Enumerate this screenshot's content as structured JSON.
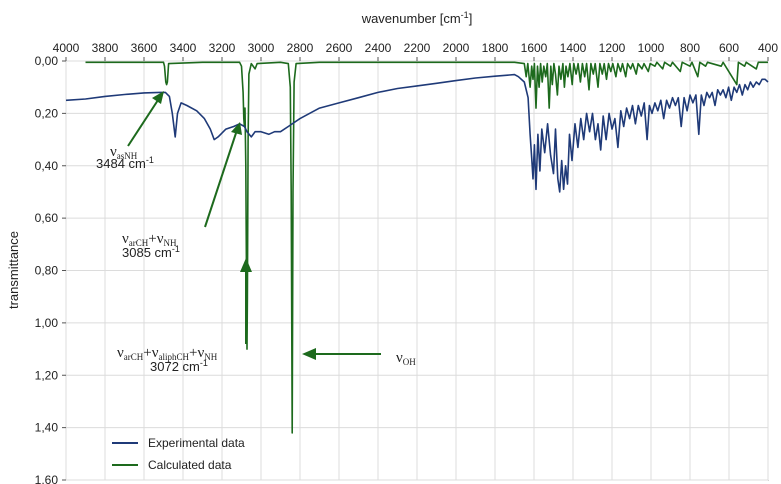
{
  "chart_data": {
    "type": "line",
    "xlabel": "wavenumber [cm",
    "xlabel_sup": "-1",
    "xlabel_close": "]",
    "ylabel": "transmittance",
    "xlim": [
      4000,
      400
    ],
    "ylim": [
      0,
      1.6
    ],
    "x_ticks": [
      4000,
      3800,
      3600,
      3400,
      3200,
      3000,
      2800,
      2600,
      2400,
      2200,
      2000,
      1800,
      1600,
      1400,
      1200,
      1000,
      800,
      600,
      400
    ],
    "x_tick_labels": [
      "4000",
      "3800",
      "3600",
      "3400",
      "3200",
      "3000",
      "2800",
      "2600",
      "2400",
      "2200",
      "2000",
      "1800",
      "1600",
      "1400",
      "1200",
      "1000",
      "800",
      "600",
      "400"
    ],
    "y_ticks": [
      0,
      0.2,
      0.4,
      0.6,
      0.8,
      1.0,
      1.2,
      1.4,
      1.6
    ],
    "y_tick_labels": [
      "0,00",
      "0,20",
      "0,40",
      "0,60",
      "0,80",
      "1,00",
      "1,20",
      "1,40",
      "1,60"
    ],
    "grid": true,
    "legend_position": "bottom-left",
    "series": [
      {
        "name": "Experimental data",
        "color": "#1f3a78",
        "points": [
          [
            4000,
            0.15
          ],
          [
            3900,
            0.145
          ],
          [
            3800,
            0.135
          ],
          [
            3700,
            0.128
          ],
          [
            3600,
            0.122
          ],
          [
            3520,
            0.12
          ],
          [
            3490,
            0.12
          ],
          [
            3470,
            0.135
          ],
          [
            3455,
            0.2
          ],
          [
            3440,
            0.29
          ],
          [
            3428,
            0.2
          ],
          [
            3410,
            0.16
          ],
          [
            3380,
            0.17
          ],
          [
            3330,
            0.19
          ],
          [
            3290,
            0.22
          ],
          [
            3260,
            0.26
          ],
          [
            3240,
            0.3
          ],
          [
            3220,
            0.29
          ],
          [
            3180,
            0.26
          ],
          [
            3140,
            0.25
          ],
          [
            3110,
            0.24
          ],
          [
            3085,
            0.25
          ],
          [
            3072,
            0.27
          ],
          [
            3050,
            0.29
          ],
          [
            3030,
            0.27
          ],
          [
            3000,
            0.27
          ],
          [
            2960,
            0.28
          ],
          [
            2930,
            0.27
          ],
          [
            2900,
            0.27
          ],
          [
            2860,
            0.25
          ],
          [
            2800,
            0.22
          ],
          [
            2700,
            0.18
          ],
          [
            2600,
            0.16
          ],
          [
            2500,
            0.14
          ],
          [
            2400,
            0.12
          ],
          [
            2300,
            0.105
          ],
          [
            2200,
            0.095
          ],
          [
            2100,
            0.085
          ],
          [
            2000,
            0.075
          ],
          [
            1900,
            0.065
          ],
          [
            1800,
            0.058
          ],
          [
            1700,
            0.052
          ],
          [
            1680,
            0.06
          ],
          [
            1650,
            0.08
          ],
          [
            1630,
            0.14
          ],
          [
            1620,
            0.28
          ],
          [
            1612,
            0.37
          ],
          [
            1605,
            0.45
          ],
          [
            1598,
            0.32
          ],
          [
            1590,
            0.49
          ],
          [
            1580,
            0.28
          ],
          [
            1570,
            0.42
          ],
          [
            1560,
            0.26
          ],
          [
            1545,
            0.35
          ],
          [
            1530,
            0.24
          ],
          [
            1515,
            0.36
          ],
          [
            1500,
            0.43
          ],
          [
            1490,
            0.26
          ],
          [
            1478,
            0.45
          ],
          [
            1468,
            0.5
          ],
          [
            1458,
            0.38
          ],
          [
            1448,
            0.49
          ],
          [
            1438,
            0.4
          ],
          [
            1428,
            0.47
          ],
          [
            1418,
            0.28
          ],
          [
            1405,
            0.38
          ],
          [
            1390,
            0.24
          ],
          [
            1375,
            0.33
          ],
          [
            1360,
            0.22
          ],
          [
            1345,
            0.3
          ],
          [
            1330,
            0.2
          ],
          [
            1315,
            0.27
          ],
          [
            1300,
            0.2
          ],
          [
            1285,
            0.3
          ],
          [
            1272,
            0.24
          ],
          [
            1258,
            0.34
          ],
          [
            1245,
            0.21
          ],
          [
            1230,
            0.3
          ],
          [
            1215,
            0.2
          ],
          [
            1200,
            0.26
          ],
          [
            1185,
            0.22
          ],
          [
            1170,
            0.33
          ],
          [
            1155,
            0.19
          ],
          [
            1140,
            0.25
          ],
          [
            1125,
            0.18
          ],
          [
            1110,
            0.22
          ],
          [
            1095,
            0.17
          ],
          [
            1080,
            0.24
          ],
          [
            1065,
            0.17
          ],
          [
            1050,
            0.21
          ],
          [
            1035,
            0.16
          ],
          [
            1020,
            0.3
          ],
          [
            1008,
            0.17
          ],
          [
            995,
            0.2
          ],
          [
            980,
            0.16
          ],
          [
            965,
            0.19
          ],
          [
            950,
            0.15
          ],
          [
            935,
            0.22
          ],
          [
            920,
            0.15
          ],
          [
            905,
            0.18
          ],
          [
            890,
            0.14
          ],
          [
            875,
            0.17
          ],
          [
            860,
            0.14
          ],
          [
            845,
            0.25
          ],
          [
            830,
            0.14
          ],
          [
            815,
            0.19
          ],
          [
            800,
            0.13
          ],
          [
            785,
            0.16
          ],
          [
            770,
            0.13
          ],
          [
            755,
            0.28
          ],
          [
            742,
            0.13
          ],
          [
            728,
            0.17
          ],
          [
            714,
            0.12
          ],
          [
            700,
            0.14
          ],
          [
            686,
            0.12
          ],
          [
            672,
            0.17
          ],
          [
            658,
            0.11
          ],
          [
            644,
            0.13
          ],
          [
            630,
            0.11
          ],
          [
            616,
            0.14
          ],
          [
            602,
            0.1
          ],
          [
            588,
            0.15
          ],
          [
            574,
            0.1
          ],
          [
            560,
            0.12
          ],
          [
            546,
            0.09
          ],
          [
            532,
            0.13
          ],
          [
            518,
            0.09
          ],
          [
            504,
            0.11
          ],
          [
            490,
            0.08
          ],
          [
            476,
            0.1
          ],
          [
            460,
            0.08
          ],
          [
            445,
            0.09
          ],
          [
            430,
            0.07
          ],
          [
            415,
            0.07
          ],
          [
            400,
            0.08
          ]
        ]
      },
      {
        "name": "Calculated data",
        "color": "#1d6a1d",
        "points": [
          [
            3900,
            0.005
          ],
          [
            3600,
            0.005
          ],
          [
            3500,
            0.005
          ],
          [
            3495,
            0.02
          ],
          [
            3488,
            0.08
          ],
          [
            3484,
            0.09
          ],
          [
            3480,
            0.08
          ],
          [
            3474,
            0.01
          ],
          [
            3300,
            0.005
          ],
          [
            3110,
            0.005
          ],
          [
            3100,
            0.02
          ],
          [
            3092,
            0.12
          ],
          [
            3088,
            0.22
          ],
          [
            3085,
            0.25
          ],
          [
            3082,
            0.18
          ],
          [
            3078,
            0.4
          ],
          [
            3074,
            0.9
          ],
          [
            3072,
            1.1
          ],
          [
            3070,
            0.9
          ],
          [
            3066,
            0.3
          ],
          [
            3062,
            0.05
          ],
          [
            3050,
            0.01
          ],
          [
            3030,
            0.03
          ],
          [
            3020,
            0.01
          ],
          [
            2900,
            0.005
          ],
          [
            2860,
            0.01
          ],
          [
            2850,
            0.1
          ],
          [
            2845,
            0.5
          ],
          [
            2840,
            1.42
          ],
          [
            2836,
            0.5
          ],
          [
            2830,
            0.08
          ],
          [
            2820,
            0.01
          ],
          [
            2700,
            0.005
          ],
          [
            1700,
            0.005
          ],
          [
            1650,
            0.01
          ],
          [
            1640,
            0.06
          ],
          [
            1632,
            0.01
          ],
          [
            1620,
            0.1
          ],
          [
            1612,
            0.02
          ],
          [
            1605,
            0.07
          ],
          [
            1598,
            0.01
          ],
          [
            1590,
            0.18
          ],
          [
            1582,
            0.02
          ],
          [
            1574,
            0.1
          ],
          [
            1566,
            0.01
          ],
          [
            1558,
            0.08
          ],
          [
            1550,
            0.02
          ],
          [
            1540,
            0.06
          ],
          [
            1532,
            0.01
          ],
          [
            1522,
            0.18
          ],
          [
            1514,
            0.02
          ],
          [
            1506,
            0.09
          ],
          [
            1498,
            0.01
          ],
          [
            1490,
            0.05
          ],
          [
            1480,
            0.13
          ],
          [
            1472,
            0.02
          ],
          [
            1462,
            0.07
          ],
          [
            1452,
            0.01
          ],
          [
            1444,
            0.1
          ],
          [
            1436,
            0.02
          ],
          [
            1426,
            0.06
          ],
          [
            1416,
            0.01
          ],
          [
            1404,
            0.09
          ],
          [
            1396,
            0.01
          ],
          [
            1384,
            0.05
          ],
          [
            1374,
            0.01
          ],
          [
            1362,
            0.08
          ],
          [
            1352,
            0.01
          ],
          [
            1340,
            0.06
          ],
          [
            1330,
            0.01
          ],
          [
            1318,
            0.11
          ],
          [
            1308,
            0.01
          ],
          [
            1296,
            0.05
          ],
          [
            1286,
            0.01
          ],
          [
            1272,
            0.1
          ],
          [
            1262,
            0.01
          ],
          [
            1250,
            0.05
          ],
          [
            1240,
            0.01
          ],
          [
            1228,
            0.07
          ],
          [
            1218,
            0.01
          ],
          [
            1206,
            0.04
          ],
          [
            1196,
            0.01
          ],
          [
            1180,
            0.06
          ],
          [
            1170,
            0.01
          ],
          [
            1156,
            0.04
          ],
          [
            1146,
            0.01
          ],
          [
            1130,
            0.06
          ],
          [
            1120,
            0.01
          ],
          [
            1104,
            0.03
          ],
          [
            1094,
            0.01
          ],
          [
            1076,
            0.05
          ],
          [
            1066,
            0.01
          ],
          [
            1046,
            0.03
          ],
          [
            1036,
            0.01
          ],
          [
            1014,
            0.04
          ],
          [
            1004,
            0.01
          ],
          [
            980,
            0.02
          ],
          [
            970,
            0.005
          ],
          [
            940,
            0.03
          ],
          [
            930,
            0.005
          ],
          [
            900,
            0.02
          ],
          [
            890,
            0.005
          ],
          [
            850,
            0.04
          ],
          [
            840,
            0.005
          ],
          [
            800,
            0.02
          ],
          [
            790,
            0.005
          ],
          [
            760,
            0.06
          ],
          [
            750,
            0.005
          ],
          [
            720,
            0.02
          ],
          [
            710,
            0.005
          ],
          [
            640,
            0.02
          ],
          [
            630,
            0.005
          ],
          [
            560,
            0.09
          ],
          [
            552,
            0.005
          ],
          [
            520,
            0.02
          ],
          [
            512,
            0.005
          ],
          [
            460,
            0.03
          ],
          [
            450,
            0.005
          ],
          [
            400,
            0.005
          ]
        ]
      }
    ],
    "annotations": {
      "a1": {
        "nu": "ν",
        "sub1": "asNH",
        "mid": "",
        "number": "3484 cm",
        "sup": "-1"
      },
      "a2": {
        "nu": "ν",
        "sub1": "arCH",
        "plus1": "+ν",
        "sub2": "NH",
        "number": "3085 cm",
        "sup": "-1"
      },
      "a3": {
        "nu": "ν",
        "sub1": "arCH",
        "plus1": "+ν",
        "sub2": "aliphCH",
        "plus2": "+ν",
        "sub3": "NH",
        "number": "3072 cm",
        "sup": "-1"
      },
      "a4": {
        "nu": "ν",
        "sub1": "OH"
      }
    }
  }
}
